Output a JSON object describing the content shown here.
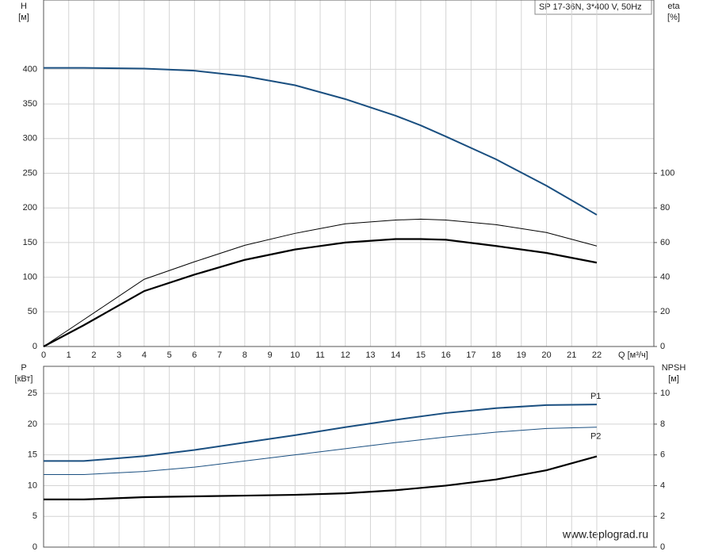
{
  "chart_data": [
    {
      "type": "line",
      "title": "SP 17-36N, 3*400 V, 50Hz",
      "ylabel": "H",
      "ylabel_unit": "[м]",
      "y2label": "eta",
      "y2label_unit": "[%]",
      "xlabel": "Q [м³/ч]",
      "x": [
        0,
        1.6,
        4,
        6,
        8,
        10,
        12,
        14,
        15,
        16,
        18,
        20,
        22
      ],
      "xlim": [
        0,
        24.27
      ],
      "xticks": [
        0,
        1,
        2,
        3,
        4,
        5,
        6,
        7,
        8,
        9,
        10,
        11,
        12,
        13,
        14,
        15,
        16,
        17,
        18,
        19,
        20,
        21,
        22
      ],
      "ylim": [
        0,
        500
      ],
      "yticks": [
        0,
        50,
        100,
        150,
        200,
        250,
        300,
        350,
        400
      ],
      "y2lim": [
        0,
        200
      ],
      "y2ticks": [
        0,
        20,
        40,
        60,
        80,
        100
      ],
      "grid": true,
      "series": [
        {
          "color": "#1a4f80",
          "width": 2,
          "values": [
            402,
            402,
            401,
            398,
            390,
            377,
            357,
            333,
            319,
            303,
            270,
            232,
            190
          ]
        },
        {
          "color": "#000000",
          "width": 1,
          "axis": "y2",
          "values": [
            0,
            15.5,
            38.8,
            48.9,
            58.4,
            65.3,
            70.8,
            73,
            73.5,
            73,
            70.3,
            65.8,
            58
          ]
        },
        {
          "color": "#000000",
          "width": 2.2,
          "axis": "y2",
          "values": [
            0,
            12.3,
            32,
            41.5,
            50,
            56,
            60,
            62,
            62,
            61.6,
            58,
            54,
            48.4
          ]
        }
      ]
    },
    {
      "type": "line",
      "ylabel": "P",
      "ylabel_unit": "[кВт]",
      "y2label": "NPSH",
      "y2label_unit": "[м]",
      "watermark": "www.teplograd.ru",
      "x": [
        0,
        1.6,
        4,
        6,
        8,
        10,
        12,
        14,
        16,
        18,
        20,
        22
      ],
      "xlim": [
        0,
        24.27
      ],
      "xticks": [
        0,
        1,
        2,
        3,
        4,
        5,
        6,
        7,
        8,
        9,
        10,
        11,
        12,
        13,
        14,
        15,
        16,
        17,
        18,
        19,
        20,
        21,
        22
      ],
      "ylim": [
        0,
        29.4
      ],
      "yticks": [
        0,
        5,
        10,
        15,
        20,
        25
      ],
      "y2lim": [
        0,
        11.76
      ],
      "y2ticks": [
        0,
        2,
        4,
        6,
        8,
        10
      ],
      "grid": true,
      "series": [
        {
          "name": "P1",
          "color": "#1a4f80",
          "width": 2,
          "values": [
            14,
            14,
            14.8,
            15.8,
            17,
            18.2,
            19.5,
            20.7,
            21.8,
            22.6,
            23.1,
            23.2
          ]
        },
        {
          "name": "P2",
          "color": "#1a4f80",
          "width": 1,
          "values": [
            11.8,
            11.8,
            12.3,
            13,
            14,
            15,
            16,
            17,
            17.9,
            18.7,
            19.3,
            19.5
          ]
        },
        {
          "color": "#000000",
          "width": 2.2,
          "axis": "y2",
          "values": [
            3.1,
            3.1,
            3.25,
            3.3,
            3.35,
            3.4,
            3.5,
            3.7,
            4.0,
            4.4,
            5.0,
            5.9
          ]
        }
      ]
    }
  ]
}
